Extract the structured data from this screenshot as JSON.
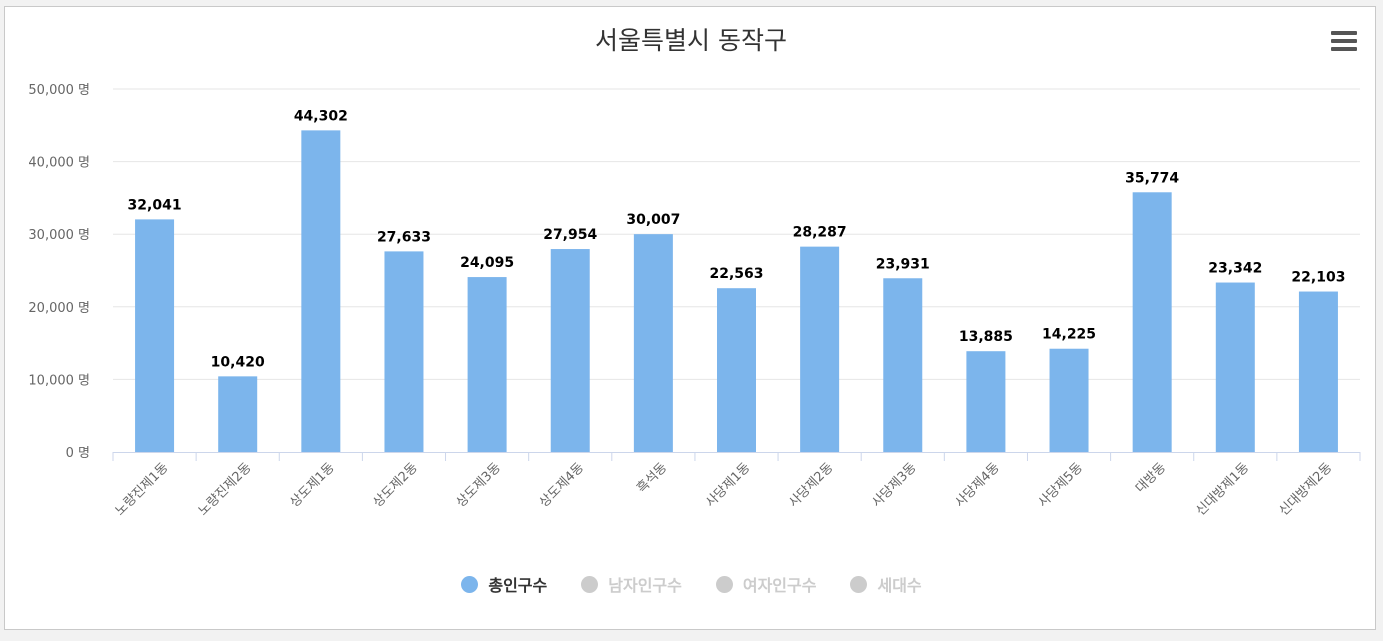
{
  "chart_data": {
    "type": "bar",
    "title": "서울특별시 동작구",
    "xlabel": "",
    "ylabel": "",
    "y_unit_suffix": " 명",
    "ylim": [
      0,
      50000
    ],
    "yticks": [
      0,
      10000,
      20000,
      30000,
      40000,
      50000
    ],
    "grid": true,
    "legend_position": "bottom",
    "categories": [
      "노량진제1동",
      "노량진제2동",
      "상도제1동",
      "상도제2동",
      "상도제3동",
      "상도제4동",
      "흑석동",
      "사당제1동",
      "사당제2동",
      "사당제3동",
      "사당제4동",
      "사당제5동",
      "대방동",
      "신대방제1동",
      "신대방제2동"
    ],
    "series": [
      {
        "name": "총인구수",
        "color": "#7cb5ec",
        "active": true,
        "values": [
          32041,
          10420,
          44302,
          27633,
          24095,
          27954,
          30007,
          22563,
          28287,
          23931,
          13885,
          14225,
          35774,
          23342,
          22103
        ]
      }
    ],
    "legend": [
      {
        "label": "총인구수",
        "active": true,
        "color": "#7cb5ec"
      },
      {
        "label": "남자인구수",
        "active": false,
        "color": "#cccccc"
      },
      {
        "label": "여자인구수",
        "active": false,
        "color": "#cccccc"
      },
      {
        "label": "세대수",
        "active": false,
        "color": "#cccccc"
      }
    ]
  },
  "colors": {
    "gridline": "#e6e6e6",
    "axis": "#ccd6eb",
    "tick_text": "#666666",
    "label_text": "#000000",
    "legend_active_text": "#333333",
    "legend_inactive_text": "#cccccc"
  },
  "menu_icon": "hamburger-menu-icon"
}
